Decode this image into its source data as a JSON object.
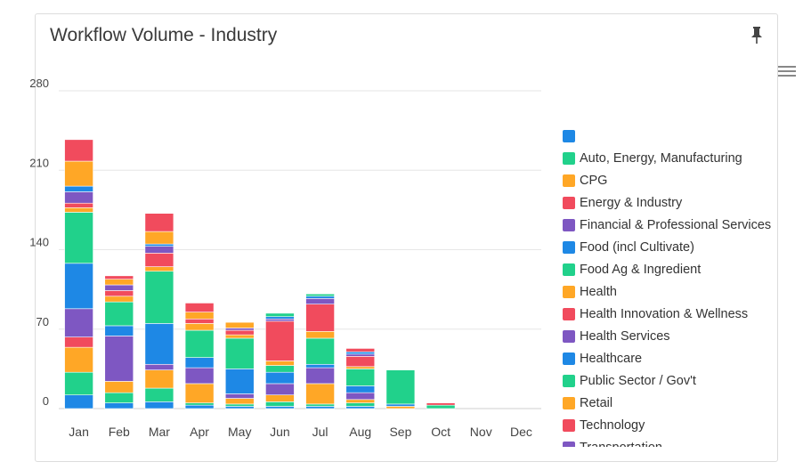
{
  "card": {
    "title": "Workflow Volume - Industry",
    "icons": {
      "pin": "pin-icon",
      "menu": "hamburger-menu-icon"
    }
  },
  "chart_data": {
    "type": "bar",
    "stacked": true,
    "title": "Workflow Volume - Industry",
    "categories": [
      "Jan",
      "Feb",
      "Mar",
      "Apr",
      "May",
      "Jun",
      "Jul",
      "Aug",
      "Sep",
      "Oct",
      "Nov",
      "Dec"
    ],
    "ylim": [
      0,
      280
    ],
    "yticks": [
      0,
      70,
      140,
      210,
      280
    ],
    "grid": true,
    "legend_position": "right",
    "series": [
      {
        "name": "",
        "color": "#1e88e5",
        "values": [
          12,
          5,
          6,
          3,
          2,
          2,
          2,
          2,
          0,
          0,
          0,
          0
        ]
      },
      {
        "name": "Auto, Energy, Manufacturing",
        "color": "#21d18b",
        "values": [
          20,
          9,
          12,
          2,
          2,
          4,
          2,
          3,
          0,
          0,
          0,
          0
        ]
      },
      {
        "name": "CPG",
        "color": "#ffa726",
        "values": [
          22,
          10,
          16,
          17,
          5,
          6,
          18,
          3,
          2,
          0,
          0,
          0
        ]
      },
      {
        "name": "Energy & Industry",
        "color": "#f14b5d",
        "values": [
          9,
          0,
          0,
          0,
          0,
          0,
          0,
          0,
          0,
          0,
          0,
          0
        ]
      },
      {
        "name": "Financial & Professional Services",
        "color": "#7e57c2",
        "values": [
          25,
          40,
          5,
          14,
          4,
          10,
          14,
          6,
          0,
          0,
          0,
          0
        ]
      },
      {
        "name": "Food (incl Cultivate)",
        "color": "#1e88e5",
        "values": [
          40,
          9,
          36,
          9,
          22,
          10,
          3,
          6,
          2,
          0,
          0,
          0
        ]
      },
      {
        "name": "Food Ag & Ingredient",
        "color": "#21d18b",
        "values": [
          45,
          21,
          46,
          24,
          27,
          6,
          23,
          15,
          30,
          3,
          0,
          0
        ]
      },
      {
        "name": "Health",
        "color": "#ffa726",
        "values": [
          4,
          5,
          4,
          6,
          3,
          4,
          6,
          2,
          0,
          0,
          0,
          0
        ]
      },
      {
        "name": "Health Innovation & Wellness",
        "color": "#f14b5d",
        "values": [
          4,
          5,
          12,
          4,
          4,
          35,
          24,
          9,
          0,
          2,
          0,
          0
        ]
      },
      {
        "name": "Health Services",
        "color": "#7e57c2",
        "values": [
          10,
          5,
          6,
          0,
          2,
          2,
          5,
          2,
          0,
          0,
          0,
          0
        ]
      },
      {
        "name": "Healthcare",
        "color": "#1e88e5",
        "values": [
          5,
          0,
          2,
          0,
          0,
          2,
          2,
          2,
          0,
          0,
          0,
          0
        ]
      },
      {
        "name": "Public Sector / Gov't",
        "color": "#21d18b",
        "values": [
          0,
          0,
          0,
          0,
          0,
          3,
          2,
          0,
          0,
          0,
          0,
          0
        ]
      },
      {
        "name": "Retail",
        "color": "#ffa726",
        "values": [
          22,
          5,
          11,
          6,
          5,
          0,
          0,
          0,
          0,
          0,
          0,
          0
        ]
      },
      {
        "name": "Technology",
        "color": "#f14b5d",
        "values": [
          19,
          3,
          16,
          8,
          0,
          0,
          0,
          3,
          0,
          0,
          0,
          0
        ]
      },
      {
        "name": "Transportation",
        "color": "#7e57c2",
        "values": [
          0,
          0,
          0,
          0,
          0,
          0,
          0,
          0,
          0,
          0,
          0,
          0
        ]
      }
    ]
  }
}
